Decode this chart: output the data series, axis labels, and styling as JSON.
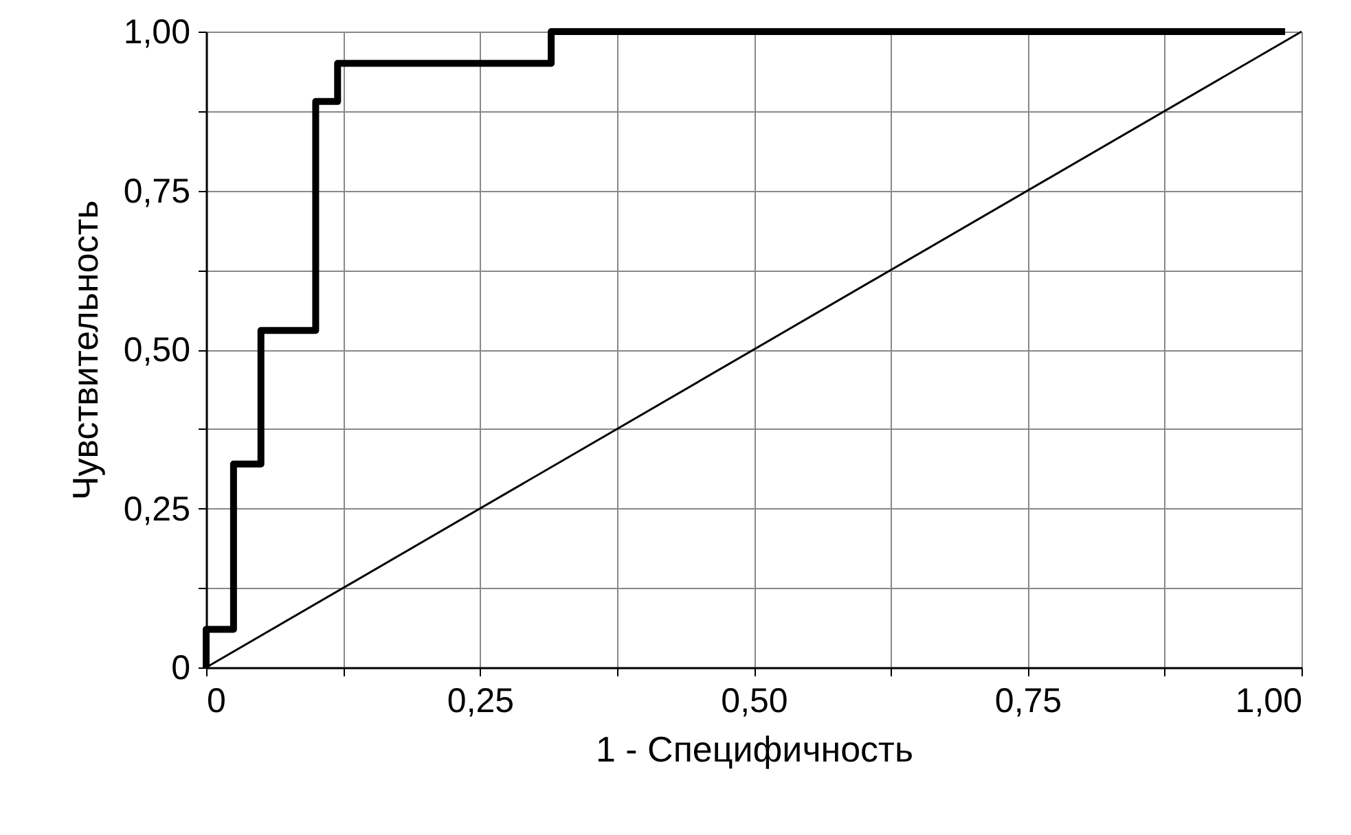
{
  "chart_data": {
    "type": "line",
    "xlabel": "1 - Специфичность",
    "ylabel": "Чувствительность",
    "xlim": [
      0,
      1
    ],
    "ylim": [
      0,
      1
    ],
    "xticks": [
      {
        "value": 0,
        "label": "0"
      },
      {
        "value": 0.125,
        "label": null
      },
      {
        "value": 0.25,
        "label": "0,25"
      },
      {
        "value": 0.375,
        "label": null
      },
      {
        "value": 0.5,
        "label": "0,50"
      },
      {
        "value": 0.625,
        "label": null
      },
      {
        "value": 0.75,
        "label": "0,75"
      },
      {
        "value": 0.875,
        "label": null
      },
      {
        "value": 1,
        "label": "1,00"
      }
    ],
    "yticks": [
      {
        "value": 0,
        "label": "0"
      },
      {
        "value": 0.125,
        "label": null
      },
      {
        "value": 0.25,
        "label": "0,25"
      },
      {
        "value": 0.375,
        "label": null
      },
      {
        "value": 0.5,
        "label": "0,50"
      },
      {
        "value": 0.625,
        "label": null
      },
      {
        "value": 0.75,
        "label": "0,75"
      },
      {
        "value": 0.875,
        "label": null
      },
      {
        "value": 1,
        "label": "1,00"
      }
    ],
    "grid": true,
    "marker": "none",
    "line_style": "solid",
    "series": [
      {
        "color": "#000000",
        "x": [
          0,
          0,
          0.025,
          0.025,
          0.05,
          0.05,
          0.1,
          0.1,
          0.12,
          0.12,
          0.315,
          0.315,
          0.985
        ],
        "values": [
          0,
          0.06,
          0.06,
          0.32,
          0.32,
          0.53,
          0.53,
          0.89,
          0.89,
          0.95,
          0.95,
          1,
          1
        ]
      },
      {
        "color": "#000000",
        "x": [
          0,
          1
        ],
        "values": [
          0,
          1
        ]
      }
    ]
  }
}
